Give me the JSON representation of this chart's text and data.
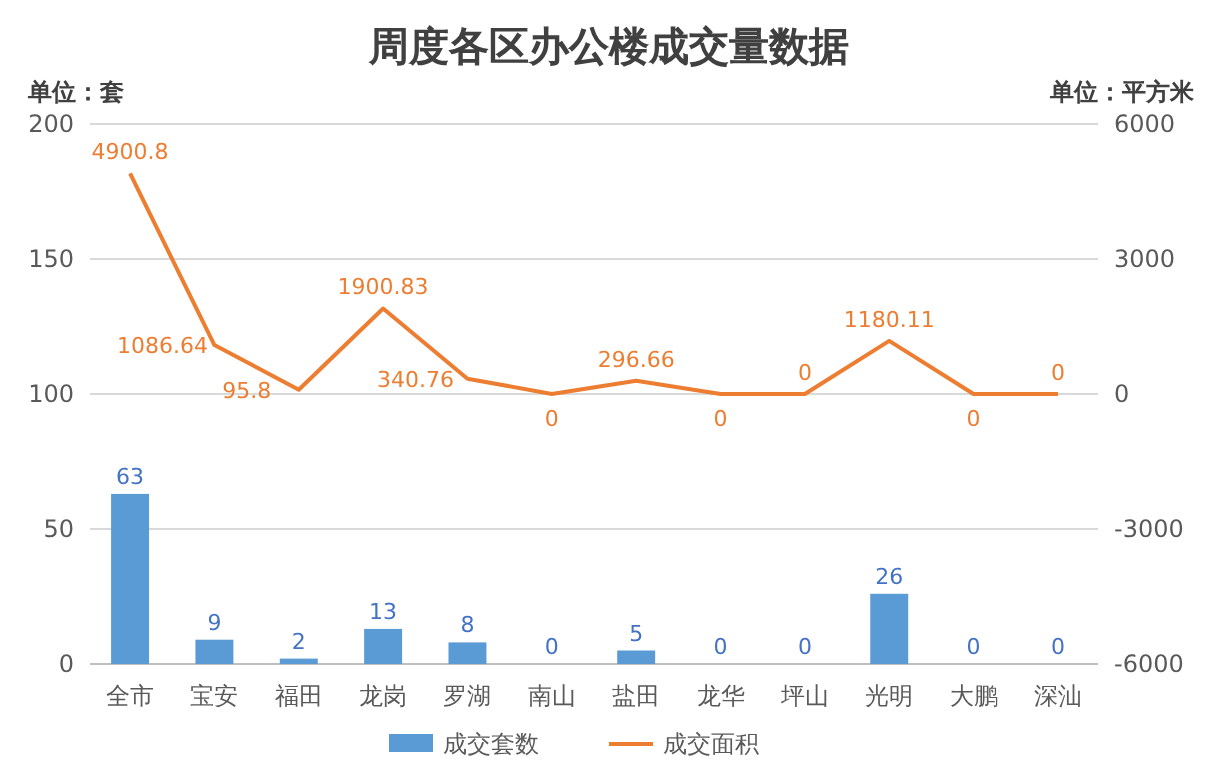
{
  "chart_data": {
    "type": "bar",
    "title": "周度各区办公楼成交量数据",
    "ylabel": "单位：套",
    "y2label": "单位：平方米",
    "categories": [
      "全市",
      "宝安",
      "福田",
      "龙岗",
      "罗湖",
      "南山",
      "盐田",
      "龙华",
      "坪山",
      "光明",
      "大鹏",
      "深汕"
    ],
    "series": [
      {
        "name": "成交套数",
        "color": "#5b9bd5",
        "values": [
          63,
          9,
          2,
          13,
          8,
          0,
          5,
          0,
          0,
          26,
          0,
          0
        ]
      },
      {
        "name": "成交面积",
        "type": "line",
        "axis": "y2",
        "color": "#ed7d31",
        "values": [
          4900.8,
          1086.64,
          95.8,
          1900.83,
          340.76,
          0,
          296.66,
          0,
          0,
          1180.11,
          0,
          0
        ]
      }
    ],
    "ylim": [
      0,
      200
    ],
    "yticks": [
      0,
      50,
      100,
      150,
      200
    ],
    "y2lim": [
      -6000,
      6000
    ],
    "y2ticks": [
      -6000,
      -3000,
      0,
      3000,
      6000
    ],
    "grid": "y",
    "legend": "bottom",
    "data_labels": true,
    "marker": "none",
    "line_style": "solid"
  }
}
